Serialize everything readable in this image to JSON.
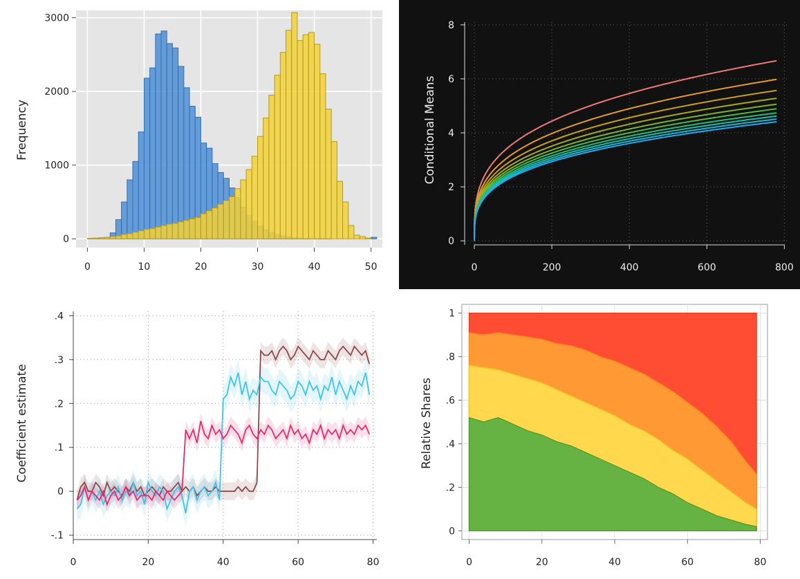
{
  "colors": {
    "hist_blue": "#4f8fd6",
    "hist_yellow": "#f2d13a",
    "dark_bg": "#111111",
    "curves": [
      "#f07a7a",
      "#e89a2a",
      "#c9a21a",
      "#a5ad1a",
      "#7bb52a",
      "#4cb94a",
      "#22bd7a",
      "#14bfae",
      "#1ab8d6",
      "#2aa8ee"
    ],
    "coef": [
      "#8b4a4a",
      "#3ec3ec",
      "#e8286e"
    ],
    "shares": [
      "#66b344",
      "#ffd84d",
      "#ff9933",
      "#ff4d33"
    ]
  },
  "chart_data": [
    {
      "type": "bar",
      "subtype": "histogram",
      "xlabel": "",
      "ylabel": "Frequency",
      "xlim": [
        -2,
        52
      ],
      "ylim": [
        -120,
        3100
      ],
      "xticks": [
        0,
        10,
        20,
        30,
        40,
        50
      ],
      "yticks": [
        0,
        1000,
        2000,
        3000
      ],
      "grid": true,
      "bin_start": 0,
      "bin_width": 1,
      "series": [
        {
          "values": [
            5,
            5,
            10,
            20,
            80,
            260,
            500,
            800,
            1050,
            1450,
            2180,
            2320,
            2780,
            2820,
            2650,
            2590,
            2340,
            2050,
            1800,
            1650,
            1300,
            1230,
            1020,
            900,
            820,
            690,
            560,
            430,
            320,
            240,
            170,
            120,
            85,
            60,
            40,
            25,
            15,
            10,
            5,
            3,
            2,
            1,
            1,
            0,
            0,
            0,
            0,
            0,
            0,
            0,
            20
          ]
        },
        {
          "values": [
            5,
            10,
            15,
            20,
            30,
            40,
            60,
            70,
            90,
            110,
            130,
            140,
            160,
            180,
            200,
            210,
            230,
            250,
            270,
            290,
            340,
            380,
            420,
            470,
            520,
            570,
            680,
            800,
            940,
            1120,
            1390,
            1640,
            1950,
            2220,
            2530,
            2830,
            3070,
            2690,
            2770,
            2800,
            2640,
            2240,
            1760,
            1320,
            780,
            500,
            180,
            50,
            30,
            10,
            0
          ]
        }
      ]
    },
    {
      "type": "line",
      "xlabel": "",
      "ylabel": "Conditional Means",
      "xlim": [
        -25,
        810
      ],
      "ylim": [
        -0.15,
        8.1
      ],
      "xticks": [
        0,
        200,
        400,
        600,
        800
      ],
      "yticks": [
        0,
        2,
        4,
        6,
        8
      ],
      "grid": true,
      "x_end": 780,
      "series": [
        {
          "values_at_end": 6.67
        },
        {
          "values_at_end": 5.98
        },
        {
          "values_at_end": 5.57
        },
        {
          "values_at_end": 5.28
        },
        {
          "values_at_end": 5.06
        },
        {
          "values_at_end": 4.89
        },
        {
          "values_at_end": 4.74
        },
        {
          "values_at_end": 4.62
        },
        {
          "values_at_end": 4.51
        },
        {
          "values_at_end": 4.41
        }
      ]
    },
    {
      "type": "line",
      "xlabel": "",
      "ylabel": "Coefficient estimate",
      "xlim": [
        0,
        81
      ],
      "ylim": [
        -0.11,
        0.41
      ],
      "xticks": [
        0,
        20,
        40,
        60,
        80
      ],
      "yticks": [
        -0.1,
        0,
        0.1,
        0.2,
        0.3,
        0.4
      ],
      "ytick_labels": [
        "-.1",
        "0",
        ".1",
        ".2",
        ".3",
        ".4"
      ],
      "grid": true,
      "x": [
        1,
        2,
        3,
        4,
        5,
        6,
        7,
        8,
        9,
        10,
        11,
        12,
        13,
        14,
        15,
        16,
        17,
        18,
        19,
        20,
        21,
        22,
        23,
        24,
        25,
        26,
        27,
        28,
        29,
        30,
        31,
        32,
        33,
        34,
        35,
        36,
        37,
        38,
        39,
        40,
        41,
        42,
        43,
        44,
        45,
        46,
        47,
        48,
        49,
        50,
        51,
        52,
        53,
        54,
        55,
        56,
        57,
        58,
        59,
        60,
        61,
        62,
        63,
        64,
        65,
        66,
        67,
        68,
        69,
        70,
        71,
        72,
        73,
        74,
        75,
        76,
        77,
        78,
        79
      ],
      "series": [
        {
          "ci_halfwidth": 0.02,
          "values": [
            -0.02,
            0.01,
            0.02,
            0.0,
            0.0,
            0.02,
            0.01,
            -0.01,
            0.02,
            0.0,
            0.01,
            0.0,
            -0.01,
            0.01,
            0.0,
            0.02,
            0.0,
            0.01,
            -0.01,
            0.0,
            0.01,
            0.0,
            -0.01,
            0.01,
            0.0,
            0.0,
            0.01,
            0.02,
            0.0,
            0.01,
            0.0,
            0.01,
            -0.01,
            0.0,
            0.01,
            0.0,
            0.0,
            0.01,
            0.0,
            0.0,
            0.0,
            0.0,
            0.0,
            0.01,
            0.0,
            0.01,
            0.0,
            0.0,
            0.02,
            0.32,
            0.31,
            0.31,
            0.32,
            0.3,
            0.32,
            0.33,
            0.32,
            0.3,
            0.31,
            0.33,
            0.32,
            0.31,
            0.3,
            0.32,
            0.31,
            0.3,
            0.3,
            0.32,
            0.31,
            0.3,
            0.32,
            0.33,
            0.32,
            0.31,
            0.33,
            0.32,
            0.31,
            0.32,
            0.29
          ]
        },
        {
          "ci_halfwidth": 0.03,
          "values": [
            -0.04,
            -0.03,
            0.01,
            -0.02,
            0.0,
            -0.02,
            0.0,
            -0.03,
            -0.01,
            0.0,
            -0.01,
            0.01,
            -0.02,
            0.0,
            -0.01,
            0.02,
            -0.01,
            0.0,
            -0.03,
            0.02,
            0.0,
            -0.01,
            0.01,
            0.0,
            -0.04,
            -0.02,
            0.0,
            0.01,
            -0.01,
            -0.05,
            0.0,
            0.01,
            -0.02,
            0.0,
            0.01,
            -0.01,
            0.0,
            0.02,
            -0.02,
            0.21,
            0.22,
            0.26,
            0.24,
            0.27,
            0.22,
            0.25,
            0.21,
            0.23,
            0.22,
            0.26,
            0.25,
            0.25,
            0.23,
            0.22,
            0.25,
            0.24,
            0.23,
            0.21,
            0.22,
            0.25,
            0.24,
            0.22,
            0.25,
            0.23,
            0.24,
            0.21,
            0.24,
            0.23,
            0.26,
            0.22,
            0.25,
            0.23,
            0.21,
            0.24,
            0.22,
            0.25,
            0.24,
            0.27,
            0.22
          ]
        },
        {
          "ci_halfwidth": 0.02,
          "values": [
            -0.02,
            -0.01,
            0.01,
            -0.02,
            0.0,
            -0.01,
            -0.02,
            0.0,
            -0.03,
            -0.01,
            0.0,
            -0.02,
            -0.01,
            0.01,
            -0.01,
            0.0,
            -0.02,
            -0.01,
            -0.01,
            -0.01,
            -0.02,
            0.0,
            -0.01,
            -0.02,
            0.0,
            -0.01,
            -0.02,
            -0.01,
            0.0,
            0.14,
            0.12,
            0.14,
            0.11,
            0.16,
            0.13,
            0.12,
            0.15,
            0.13,
            0.14,
            0.12,
            0.13,
            0.15,
            0.14,
            0.13,
            0.11,
            0.14,
            0.15,
            0.13,
            0.12,
            0.14,
            0.13,
            0.15,
            0.14,
            0.12,
            0.13,
            0.14,
            0.12,
            0.15,
            0.13,
            0.14,
            0.12,
            0.13,
            0.11,
            0.14,
            0.13,
            0.15,
            0.12,
            0.14,
            0.13,
            0.14,
            0.12,
            0.15,
            0.13,
            0.14,
            0.13,
            0.15,
            0.14,
            0.15,
            0.13
          ]
        }
      ]
    },
    {
      "type": "area",
      "stacked": true,
      "xlabel": "",
      "ylabel": "Relative Shares",
      "xlim": [
        -2,
        82
      ],
      "ylim": [
        -0.04,
        1.04
      ],
      "xticks": [
        0,
        20,
        40,
        60,
        80
      ],
      "yticks": [
        0,
        0.2,
        0.4,
        0.6,
        0.8,
        1
      ],
      "ytick_labels": [
        "0",
        ".2",
        ".4",
        ".6",
        ".8",
        "1"
      ],
      "grid": true,
      "x": [
        0,
        4,
        8,
        12,
        16,
        20,
        24,
        28,
        32,
        36,
        40,
        44,
        48,
        52,
        56,
        60,
        64,
        68,
        72,
        76,
        79
      ],
      "cumulative_series": [
        {
          "values": [
            0.52,
            0.5,
            0.52,
            0.49,
            0.46,
            0.44,
            0.41,
            0.39,
            0.36,
            0.33,
            0.3,
            0.27,
            0.24,
            0.2,
            0.17,
            0.13,
            0.1,
            0.07,
            0.05,
            0.03,
            0.02
          ]
        },
        {
          "values": [
            0.76,
            0.75,
            0.74,
            0.72,
            0.7,
            0.68,
            0.65,
            0.62,
            0.59,
            0.56,
            0.53,
            0.49,
            0.46,
            0.42,
            0.37,
            0.33,
            0.28,
            0.23,
            0.18,
            0.13,
            0.1
          ]
        },
        {
          "values": [
            0.91,
            0.9,
            0.91,
            0.9,
            0.89,
            0.88,
            0.86,
            0.85,
            0.83,
            0.8,
            0.78,
            0.75,
            0.72,
            0.68,
            0.64,
            0.59,
            0.54,
            0.48,
            0.41,
            0.32,
            0.26
          ]
        },
        {
          "values": [
            1,
            1,
            1,
            1,
            1,
            1,
            1,
            1,
            1,
            1,
            1,
            1,
            1,
            1,
            1,
            1,
            1,
            1,
            1,
            1,
            1
          ]
        }
      ]
    }
  ]
}
